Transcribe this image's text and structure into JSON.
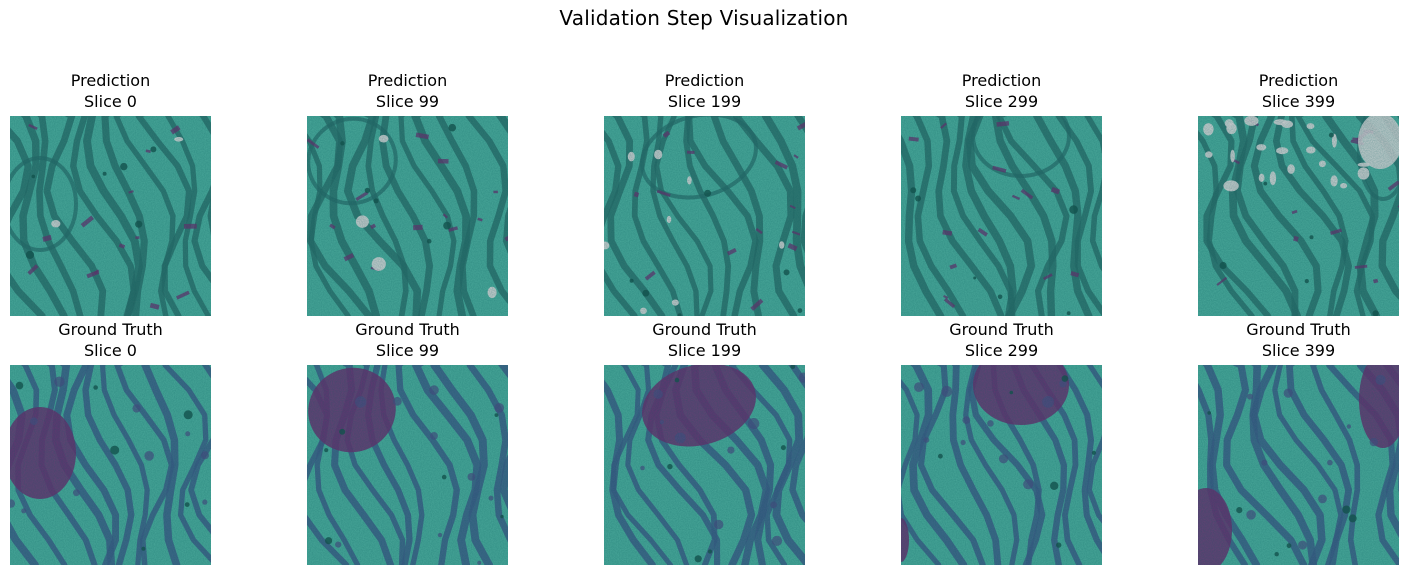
{
  "figure": {
    "title": "Validation Step Visualization"
  },
  "rows": [
    {
      "label": "Prediction",
      "panels": [
        {
          "slice_label": "Slice 0"
        },
        {
          "slice_label": "Slice 99"
        },
        {
          "slice_label": "Slice 199"
        },
        {
          "slice_label": "Slice 299"
        },
        {
          "slice_label": "Slice 399"
        }
      ]
    },
    {
      "label": "Ground Truth",
      "panels": [
        {
          "slice_label": "Slice 0"
        },
        {
          "slice_label": "Slice 99"
        },
        {
          "slice_label": "Slice 199"
        },
        {
          "slice_label": "Slice 299"
        },
        {
          "slice_label": "Slice 399"
        }
      ]
    }
  ],
  "colors": {
    "background_class": "#4aa89a",
    "membrane": "#2a6a68",
    "organelle_class": "#6b2e6e",
    "unlabeled": "#d9d4d6"
  }
}
